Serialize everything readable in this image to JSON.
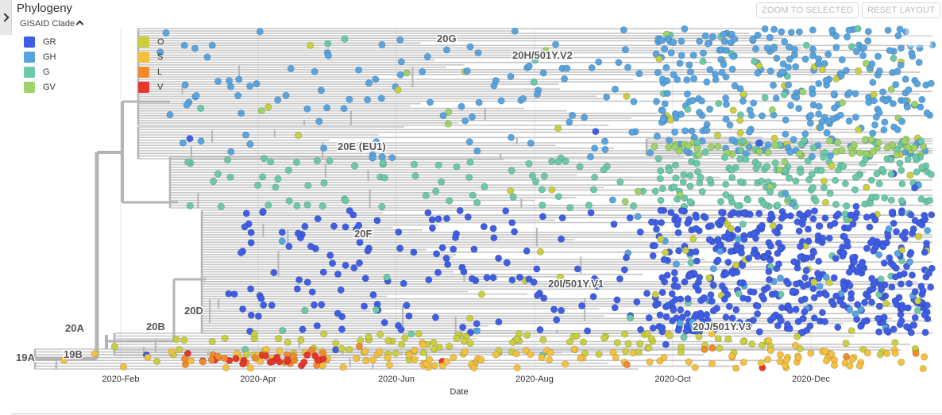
{
  "panel": {
    "title": "Phylogeny",
    "zoom_button": "ZOOM TO SELECTED",
    "reset_button": "RESET LAYOUT"
  },
  "legend": {
    "title": "GISAID Clade",
    "items": [
      {
        "label": "GR",
        "color": "#3f5ee6"
      },
      {
        "label": "GH",
        "color": "#58a4e0"
      },
      {
        "label": "G",
        "color": "#6bc9a8"
      },
      {
        "label": "GV",
        "color": "#9ed36a"
      },
      {
        "label": "O",
        "color": "#c9cf3f"
      },
      {
        "label": "S",
        "color": "#f5c03e"
      },
      {
        "label": "L",
        "color": "#f28a2c"
      },
      {
        "label": "V",
        "color": "#e8372a"
      }
    ]
  },
  "tree": {
    "branch_color": "#b4b4b4",
    "x_axis_title": "Date",
    "x_ticks": [
      "2020-Feb",
      "2020-Apr",
      "2020-Jun",
      "2020-Aug",
      "2020-Oct",
      "2020-Dec"
    ],
    "clade_labels": [
      "20G",
      "20H/501Y.V2",
      "20E (EU1)",
      "20F",
      "20I/501Y.V1",
      "20D",
      "20A",
      "20B",
      "20J/501Y.V3",
      "19B",
      "19A"
    ]
  },
  "icons": {
    "sidebar_toggle": "chevron-right-icon",
    "legend_collapse": "chevron-up-icon",
    "expand": "expand-icon"
  }
}
